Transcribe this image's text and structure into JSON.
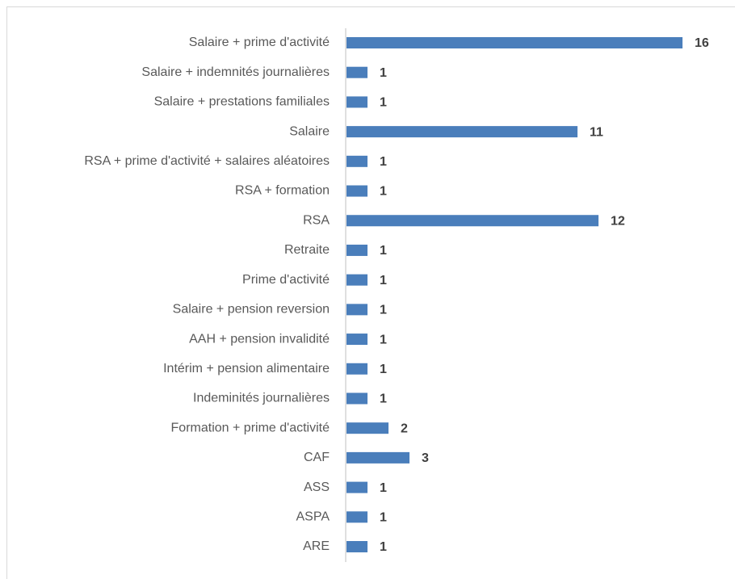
{
  "chart_data": {
    "type": "bar",
    "orientation": "horizontal",
    "color": "#4a7ebb",
    "categories": [
      "Salaire + prime d'activité",
      "Salaire + indemnités journalières",
      "Salaire + prestations familiales",
      "Salaire",
      "RSA + prime d'activité + salaires aléatoires",
      "RSA + formation",
      "RSA",
      "Retraite",
      "Prime d'activité",
      "Salaire + pension reversion",
      "AAH + pension invalidité",
      "Intérim + pension alimentaire",
      "Indeminités journalières",
      "Formation + prime d'activité",
      "CAF",
      "ASS",
      "ASPA",
      "ARE"
    ],
    "values": [
      16,
      1,
      1,
      11,
      1,
      1,
      12,
      1,
      1,
      1,
      1,
      1,
      1,
      2,
      3,
      1,
      1,
      1
    ]
  }
}
